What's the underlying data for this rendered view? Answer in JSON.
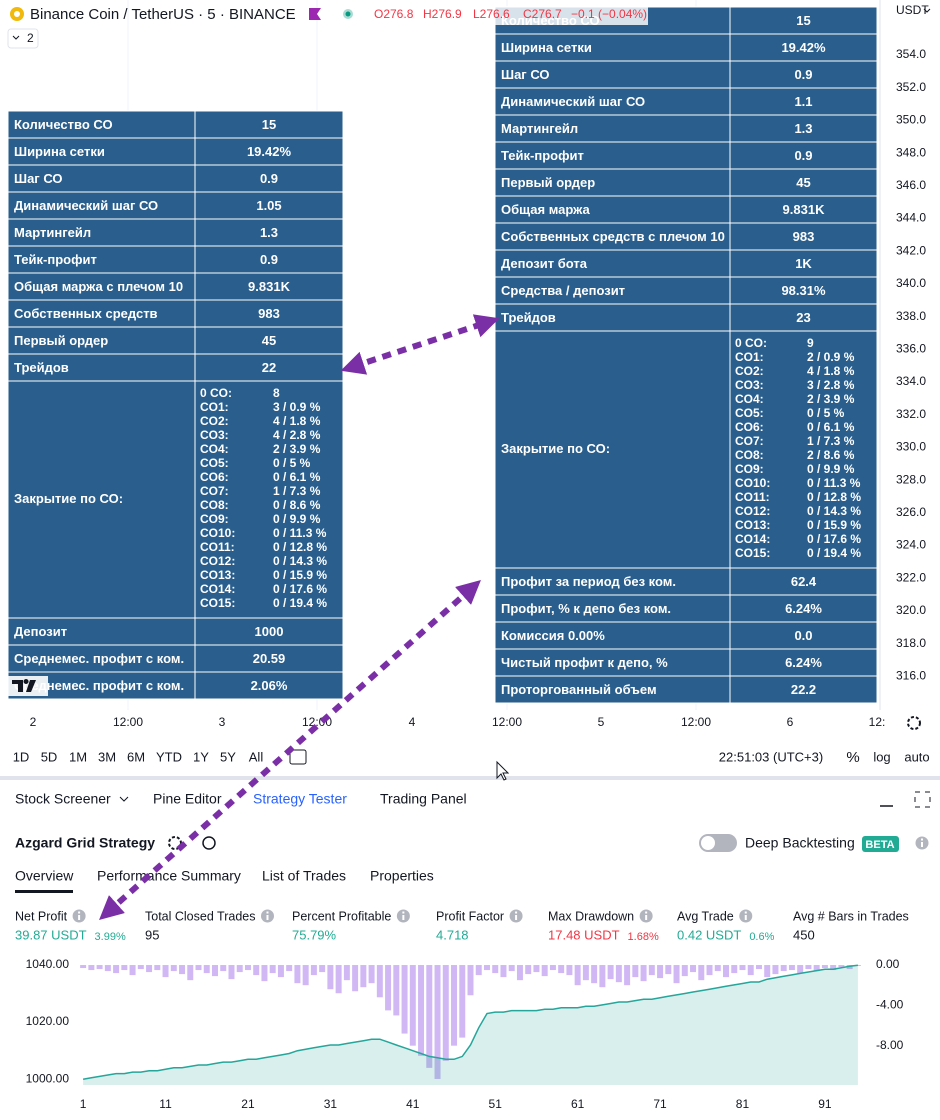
{
  "header": {
    "symbol": "Binance Coin / TetherUS · 5 · BINANCE",
    "open": "O276.8",
    "high": "H276.9",
    "low": "L276.6",
    "close": "C276.7",
    "change": "−0.1 (−0.04%)",
    "interval_count": "2",
    "currency": "USDT"
  },
  "price_axis": [
    "354.0",
    "352.0",
    "350.0",
    "348.0",
    "346.0",
    "344.0",
    "342.0",
    "340.0",
    "338.0",
    "336.0",
    "334.0",
    "332.0",
    "330.0",
    "328.0",
    "326.0",
    "324.0",
    "322.0",
    "320.0",
    "318.0",
    "316.0"
  ],
  "time_axis": [
    "2",
    "12:00",
    "3",
    "12:00",
    "4",
    "12:00",
    "5",
    "12:00",
    "6",
    "12:"
  ],
  "table_left": {
    "rows_top": [
      [
        "Количество СО",
        "15"
      ],
      [
        "Ширина сетки",
        "19.42%"
      ],
      [
        "Шаг СО",
        "0.9"
      ],
      [
        "Динамический шаг СО",
        "1.05"
      ],
      [
        "Мартингейл",
        "1.3"
      ],
      [
        "Тейк-профит",
        "0.9"
      ],
      [
        "Общая маржа с плечом 10",
        "9.831K"
      ],
      [
        "Собственных средств",
        "983"
      ],
      [
        "Первый ордер",
        "45"
      ],
      [
        "Трейдов",
        "22"
      ]
    ],
    "closing_label": "Закрытие по СО:",
    "closing": [
      [
        "0 CO:",
        "8"
      ],
      [
        "CO1:",
        "3 / 0.9 %"
      ],
      [
        "CO2:",
        "4 / 1.8 %"
      ],
      [
        "CO3:",
        "4 / 2.8 %"
      ],
      [
        "CO4:",
        "2 / 3.9 %"
      ],
      [
        "CO5:",
        "0 / 5 %"
      ],
      [
        "CO6:",
        "0 / 6.1 %"
      ],
      [
        "CO7:",
        "1 / 7.3 %"
      ],
      [
        "CO8:",
        "0 / 8.6 %"
      ],
      [
        "CO9:",
        "0 / 9.9 %"
      ],
      [
        "CO10:",
        "0 / 11.3 %"
      ],
      [
        "CO11:",
        "0 / 12.8 %"
      ],
      [
        "CO12:",
        "0 / 14.3 %"
      ],
      [
        "CO13:",
        "0 / 15.9 %"
      ],
      [
        "CO14:",
        "0 / 17.6 %"
      ],
      [
        "CO15:",
        "0 / 19.4 %"
      ]
    ],
    "rows_bottom": [
      [
        "Депозит",
        "1000"
      ],
      [
        "Среднемес. профит с ком.",
        "20.59"
      ],
      [
        "Среднемес. профит с ком.",
        "2.06%"
      ]
    ]
  },
  "table_right": {
    "rows_top": [
      [
        "Количество СО",
        "15"
      ],
      [
        "Ширина сетки",
        "19.42%"
      ],
      [
        "Шаг СО",
        "0.9"
      ],
      [
        "Динамический шаг СО",
        "1.1"
      ],
      [
        "Мартингейл",
        "1.3"
      ],
      [
        "Тейк-профит",
        "0.9"
      ],
      [
        "Первый ордер",
        "45"
      ],
      [
        "Общая маржа",
        "9.831K"
      ],
      [
        "Собственных средств с плечом 10",
        "983"
      ],
      [
        "Депозит бота",
        "1K"
      ],
      [
        "Средства / депозит",
        "98.31%"
      ],
      [
        "Трейдов",
        "23"
      ]
    ],
    "closing_label": "Закрытие по СО:",
    "closing": [
      [
        "0 CO:",
        "9"
      ],
      [
        "CO1:",
        "2 / 0.9 %"
      ],
      [
        "CO2:",
        "4 / 1.8 %"
      ],
      [
        "CO3:",
        "3 / 2.8 %"
      ],
      [
        "CO4:",
        "2 / 3.9 %"
      ],
      [
        "CO5:",
        "0 / 5 %"
      ],
      [
        "CO6:",
        "0 / 6.1 %"
      ],
      [
        "CO7:",
        "1 / 7.3 %"
      ],
      [
        "CO8:",
        "2 / 8.6 %"
      ],
      [
        "CO9:",
        "0 / 9.9 %"
      ],
      [
        "CO10:",
        "0 / 11.3 %"
      ],
      [
        "CO11:",
        "0 / 12.8 %"
      ],
      [
        "CO12:",
        "0 / 14.3 %"
      ],
      [
        "CO13:",
        "0 / 15.9 %"
      ],
      [
        "CO14:",
        "0 / 17.6 %"
      ],
      [
        "CO15:",
        "0 / 19.4 %"
      ]
    ],
    "rows_bottom": [
      [
        "Профит за период без ком.",
        "62.4"
      ],
      [
        "Профит, % к депо без ком.",
        "6.24%"
      ],
      [
        "Комиссия 0.00%",
        "0.0"
      ],
      [
        "Чистый профит к депо, %",
        "6.24%"
      ],
      [
        "Проторгованный объем",
        "22.2"
      ]
    ]
  },
  "toolbar": {
    "ranges": [
      "1D",
      "5D",
      "1M",
      "3M",
      "6M",
      "YTD",
      "1Y",
      "5Y",
      "All"
    ],
    "clock": "22:51:03 (UTC+3)",
    "percent": "%",
    "log": "log",
    "auto": "auto"
  },
  "panel": {
    "tabs": [
      "Stock Screener",
      "Pine Editor",
      "Strategy Tester",
      "Trading Panel"
    ],
    "strategy": "Azgard Grid Strategy",
    "deep_backtesting": "Deep Backtesting",
    "badge": "BETA",
    "subtabs": [
      "Overview",
      "Performance Summary",
      "List of Trades",
      "Properties"
    ],
    "metrics": [
      {
        "label": "Net Profit",
        "value": "39.87 USDT",
        "extra": "3.99%",
        "tone": "up"
      },
      {
        "label": "Total Closed Trades",
        "value": "95",
        "tone": "neutral"
      },
      {
        "label": "Percent Profitable",
        "value": "75.79%",
        "tone": "up"
      },
      {
        "label": "Profit Factor",
        "value": "4.718",
        "tone": "up"
      },
      {
        "label": "Max Drawdown",
        "value": "17.48 USDT",
        "extra": "1.68%",
        "tone": "down"
      },
      {
        "label": "Avg Trade",
        "value": "0.42 USDT",
        "extra": "0.6%",
        "tone": "up"
      },
      {
        "label": "Avg # Bars in Trades",
        "value": "450",
        "tone": "neutral"
      }
    ]
  },
  "chart_data": {
    "type": "line",
    "x": [
      1,
      2,
      3,
      4,
      5,
      6,
      7,
      8,
      9,
      10,
      11,
      12,
      13,
      14,
      15,
      16,
      17,
      18,
      19,
      20,
      21,
      22,
      23,
      24,
      25,
      26,
      27,
      28,
      29,
      30,
      31,
      32,
      33,
      34,
      35,
      36,
      37,
      38,
      39,
      40,
      41,
      42,
      43,
      44,
      45,
      46,
      47,
      48,
      49,
      50,
      51,
      52,
      53,
      54,
      55,
      56,
      57,
      58,
      59,
      60,
      61,
      62,
      63,
      64,
      65,
      66,
      67,
      68,
      69,
      70,
      71,
      72,
      73,
      74,
      75,
      76,
      77,
      78,
      79,
      80,
      81,
      82,
      83,
      84,
      85,
      86,
      87,
      88,
      89,
      90,
      91,
      92,
      93,
      94,
      95
    ],
    "series": [
      {
        "color": "#26a69a",
        "values": [
          1000,
          1000.5,
          1001,
          1001.5,
          1002,
          1002,
          1002.5,
          1002.5,
          1003,
          1003,
          1003.5,
          1004,
          1004,
          1004.5,
          1005,
          1005,
          1005.5,
          1006,
          1006,
          1006.5,
          1007,
          1007,
          1007.5,
          1008,
          1008.5,
          1009,
          1010,
          1010.5,
          1011,
          1011.5,
          1012,
          1012,
          1012.5,
          1013,
          1013.5,
          1014,
          1014,
          1013,
          1012,
          1011,
          1010,
          1009,
          1008,
          1007.5,
          1007,
          1007,
          1008,
          1012,
          1018,
          1023,
          1023.5,
          1023.5,
          1024,
          1024,
          1024,
          1024,
          1024.5,
          1024.5,
          1025,
          1025,
          1025,
          1025.5,
          1025.5,
          1026,
          1026.5,
          1027,
          1027,
          1027.5,
          1028,
          1028,
          1028.5,
          1029,
          1029.5,
          1030,
          1030.5,
          1031,
          1031.5,
          1032,
          1032.5,
          1033,
          1033.5,
          1034,
          1034,
          1035,
          1035.5,
          1036,
          1036.5,
          1037,
          1037.5,
          1038,
          1038.5,
          1038.5,
          1039,
          1039.5,
          1039.87
        ]
      },
      {
        "type": "bar",
        "axis": "y2",
        "color": "#d1b8f5",
        "values": [
          -0.3,
          -0.5,
          -0.4,
          -0.6,
          -0.8,
          -0.5,
          -1.0,
          -0.4,
          -0.7,
          -0.5,
          -1.2,
          -0.6,
          -0.9,
          -1.5,
          -0.5,
          -0.8,
          -1.1,
          -0.6,
          -1.4,
          -0.7,
          -0.5,
          -1.0,
          -1.6,
          -0.8,
          -1.2,
          -0.6,
          -1.8,
          -2.0,
          -1.0,
          -0.7,
          -2.4,
          -2.8,
          -1.5,
          -2.6,
          -2.2,
          -1.8,
          -3.2,
          -4.5,
          -5.0,
          -6.8,
          -8.0,
          -9.0,
          -10.2,
          -11.3,
          -9.5,
          -8.0,
          -7.2,
          -3.0,
          -1.0,
          -0.5,
          -0.8,
          -1.2,
          -0.6,
          -1.5,
          -0.9,
          -0.7,
          -1.1,
          -0.5,
          -0.8,
          -1.0,
          -2.0,
          -1.5,
          -1.8,
          -2.2,
          -1.4,
          -1.7,
          -2.0,
          -1.2,
          -1.6,
          -1.0,
          -1.3,
          -0.9,
          -1.8,
          -1.1,
          -0.7,
          -1.5,
          -1.0,
          -0.6,
          -1.2,
          -0.8,
          -0.5,
          -1.0,
          -0.4,
          -1.2,
          -0.9,
          -0.6,
          -0.5,
          -0.8,
          -0.4,
          -0.6,
          -0.3,
          -0.5,
          -0.2,
          -0.4,
          -0.1
        ]
      }
    ],
    "xlim": [
      0.5,
      95.5
    ],
    "xticks": [
      1,
      11,
      21,
      31,
      41,
      51,
      61,
      71,
      81,
      91
    ],
    "ylim": [
      998,
      1041
    ],
    "yticks": [
      {
        "value": 1040,
        "label": "1040.00"
      },
      {
        "value": 1020,
        "label": "1020.00"
      },
      {
        "value": 1000,
        "label": "1000.00"
      }
    ],
    "y2lim": [
      -11.9,
      0.3
    ],
    "y2ticks": [
      {
        "value": 0,
        "label": "0.00"
      },
      {
        "value": -4,
        "label": "-4.00"
      },
      {
        "value": -8,
        "label": "-8.00"
      }
    ]
  }
}
